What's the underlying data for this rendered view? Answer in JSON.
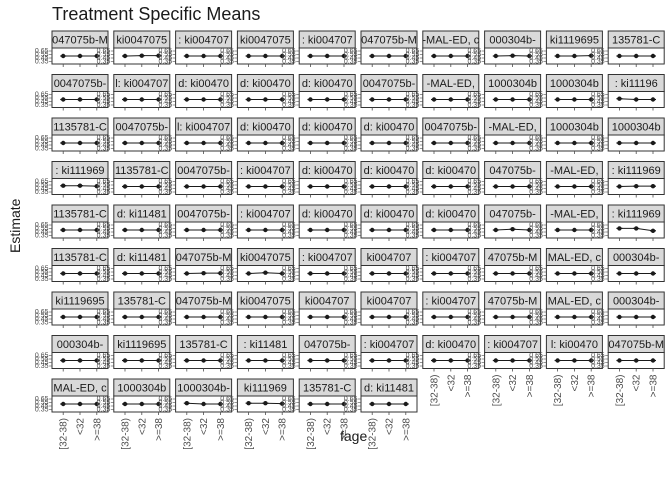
{
  "chart_data": {
    "type": "scatter",
    "title": "Treatment Specific Means",
    "xlabel": "fage",
    "ylabel": "Estimate",
    "x_categories": [
      "[32-38)",
      "<32",
      ">=38"
    ],
    "grid_rows": 9,
    "grid_cols": 10,
    "panel_count": 86,
    "y_range": [
      0,
      1
    ],
    "panels": [
      {
        "strip": "047075b-M",
        "values": [
          0.5,
          0.5,
          0.5
        ]
      },
      {
        "strip": "ki0047075",
        "values": [
          0.5,
          0.52,
          0.52
        ]
      },
      {
        "strip": ": ki004707",
        "values": [
          0.5,
          0.5,
          0.5
        ]
      },
      {
        "strip": "ki0047075",
        "values": [
          0.5,
          0.5,
          0.5
        ]
      },
      {
        "strip": ": ki004707",
        "values": [
          0.5,
          0.5,
          0.5
        ]
      },
      {
        "strip": "047075b-M",
        "values": [
          0.5,
          0.5,
          0.5
        ]
      },
      {
        "strip": "-MAL-ED, c",
        "values": [
          0.5,
          0.5,
          0.5
        ]
      },
      {
        "strip": "000304b-",
        "values": [
          0.5,
          0.52,
          0.5
        ]
      },
      {
        "strip": "ki1119695",
        "values": [
          0.5,
          0.5,
          0.52
        ]
      },
      {
        "strip": "135781-C",
        "values": [
          0.5,
          0.5,
          0.5
        ]
      },
      {
        "strip": "0047075b-",
        "values": [
          0.5,
          0.5,
          0.5
        ]
      },
      {
        "strip": "l: ki004707",
        "values": [
          0.5,
          0.5,
          0.5
        ]
      },
      {
        "strip": "d: ki00470",
        "values": [
          0.5,
          0.5,
          0.5
        ]
      },
      {
        "strip": "d: ki00470",
        "values": [
          0.5,
          0.5,
          0.5
        ]
      },
      {
        "strip": "d: ki00470",
        "values": [
          0.5,
          0.5,
          0.5
        ]
      },
      {
        "strip": "0047075b-",
        "values": [
          0.5,
          0.5,
          0.5
        ]
      },
      {
        "strip": "-MAL-ED,",
        "values": [
          0.5,
          0.5,
          0.5
        ]
      },
      {
        "strip": "1000304b",
        "values": [
          0.5,
          0.5,
          0.5
        ]
      },
      {
        "strip": "1000304b",
        "values": [
          0.5,
          0.5,
          0.5
        ]
      },
      {
        "strip": ": ki11196",
        "values": [
          0.55,
          0.5,
          0.5
        ]
      },
      {
        "strip": "1135781-C",
        "values": [
          0.5,
          0.5,
          0.5
        ]
      },
      {
        "strip": "0047075b-",
        "values": [
          0.5,
          0.5,
          0.5
        ]
      },
      {
        "strip": "l: ki004707",
        "values": [
          0.5,
          0.5,
          0.5
        ]
      },
      {
        "strip": "d: ki00470",
        "values": [
          0.5,
          0.5,
          0.5
        ]
      },
      {
        "strip": "d: ki00470",
        "values": [
          0.5,
          0.5,
          0.5
        ]
      },
      {
        "strip": "d: ki00470",
        "values": [
          0.5,
          0.5,
          0.5
        ]
      },
      {
        "strip": "0047075b-",
        "values": [
          0.5,
          0.5,
          0.5
        ]
      },
      {
        "strip": "-MAL-ED,",
        "values": [
          0.5,
          0.5,
          0.5
        ]
      },
      {
        "strip": "1000304b",
        "values": [
          0.5,
          0.5,
          0.5
        ]
      },
      {
        "strip": "1000304b",
        "values": [
          0.5,
          0.5,
          0.5
        ]
      },
      {
        "strip": ": ki111969",
        "values": [
          0.55,
          0.55,
          0.52
        ]
      },
      {
        "strip": "1135781-C",
        "values": [
          0.5,
          0.5,
          0.5
        ]
      },
      {
        "strip": "0047075b-",
        "values": [
          0.5,
          0.5,
          0.5
        ]
      },
      {
        "strip": ": ki004707",
        "values": [
          0.5,
          0.5,
          0.5
        ]
      },
      {
        "strip": "d: ki00470",
        "values": [
          0.5,
          0.5,
          0.5
        ]
      },
      {
        "strip": "d: ki00470",
        "values": [
          0.5,
          0.5,
          0.5
        ]
      },
      {
        "strip": "d: ki00470",
        "values": [
          0.5,
          0.5,
          0.5
        ]
      },
      {
        "strip": "047075b-",
        "values": [
          0.5,
          0.5,
          0.5
        ]
      },
      {
        "strip": "-MAL-ED,",
        "values": [
          0.5,
          0.5,
          0.5
        ]
      },
      {
        "strip": ": ki111969",
        "values": [
          0.5,
          0.52,
          0.52
        ]
      },
      {
        "strip": "1135781-C",
        "values": [
          0.5,
          0.5,
          0.5
        ]
      },
      {
        "strip": "d: ki11481",
        "values": [
          0.5,
          0.5,
          0.5
        ]
      },
      {
        "strip": "0047075b-",
        "values": [
          0.5,
          0.5,
          0.5
        ]
      },
      {
        "strip": ": ki004707",
        "values": [
          0.5,
          0.5,
          0.5
        ]
      },
      {
        "strip": "d: ki00470",
        "values": [
          0.5,
          0.5,
          0.5
        ]
      },
      {
        "strip": "d: ki00470",
        "values": [
          0.5,
          0.5,
          0.5
        ]
      },
      {
        "strip": "d: ki00470",
        "values": [
          0.5,
          0.5,
          0.5
        ]
      },
      {
        "strip": "047075b-",
        "values": [
          0.5,
          0.55,
          0.5
        ]
      },
      {
        "strip": "-MAL-ED,",
        "values": [
          0.5,
          0.5,
          0.5
        ]
      },
      {
        "strip": ": ki111969",
        "values": [
          0.6,
          0.6,
          0.45
        ]
      },
      {
        "strip": "1135781-C",
        "values": [
          0.5,
          0.5,
          0.5
        ]
      },
      {
        "strip": "d: ki11481",
        "values": [
          0.5,
          0.5,
          0.5
        ]
      },
      {
        "strip": "047075b-M",
        "values": [
          0.5,
          0.52,
          0.52
        ]
      },
      {
        "strip": "ki0047075",
        "values": [
          0.5,
          0.55,
          0.5
        ]
      },
      {
        "strip": ": ki004707",
        "values": [
          0.5,
          0.5,
          0.5
        ]
      },
      {
        "strip": "ki004707",
        "values": [
          0.5,
          0.5,
          0.5
        ]
      },
      {
        "strip": ": ki004707",
        "values": [
          0.5,
          0.5,
          0.5
        ]
      },
      {
        "strip": "47075b-M",
        "values": [
          0.5,
          0.5,
          0.5
        ]
      },
      {
        "strip": "MAL-ED, c",
        "values": [
          0.5,
          0.5,
          0.5
        ]
      },
      {
        "strip": "000304b-",
        "values": [
          0.5,
          0.5,
          0.5
        ]
      },
      {
        "strip": "ki1119695",
        "values": [
          0.5,
          0.5,
          0.5
        ]
      },
      {
        "strip": "135781-C",
        "values": [
          0.5,
          0.5,
          0.5
        ]
      },
      {
        "strip": "047075b-M",
        "values": [
          0.5,
          0.5,
          0.5
        ]
      },
      {
        "strip": "ki0047075",
        "values": [
          0.5,
          0.5,
          0.5
        ]
      },
      {
        "strip": "ki004707",
        "values": [
          0.5,
          0.5,
          0.5
        ]
      },
      {
        "strip": "ki004707",
        "values": [
          0.5,
          0.5,
          0.5
        ]
      },
      {
        "strip": ": ki004707",
        "values": [
          0.5,
          0.5,
          0.5
        ]
      },
      {
        "strip": "47075b-M",
        "values": [
          0.5,
          0.5,
          0.5
        ]
      },
      {
        "strip": "MAL-ED, c",
        "values": [
          0.5,
          0.5,
          0.5
        ]
      },
      {
        "strip": "000304b-",
        "values": [
          0.5,
          0.5,
          0.5
        ]
      },
      {
        "strip": "000304b-",
        "values": [
          0.5,
          0.5,
          0.5
        ]
      },
      {
        "strip": "ki1119695",
        "values": [
          0.5,
          0.5,
          0.5
        ]
      },
      {
        "strip": "135781-C",
        "values": [
          0.5,
          0.5,
          0.5
        ]
      },
      {
        "strip": ": ki11481",
        "values": [
          0.5,
          0.5,
          0.5
        ]
      },
      {
        "strip": "047075b-",
        "values": [
          0.5,
          0.5,
          0.5
        ]
      },
      {
        "strip": ": ki004707",
        "values": [
          0.5,
          0.5,
          0.5
        ]
      },
      {
        "strip": "d: ki00470",
        "values": [
          0.5,
          0.5,
          0.5
        ]
      },
      {
        "strip": ": ki004707",
        "values": [
          0.5,
          0.5,
          0.5
        ]
      },
      {
        "strip": "l: ki00470",
        "values": [
          0.5,
          0.5,
          0.5
        ]
      },
      {
        "strip": "047075b-M",
        "values": [
          0.5,
          0.5,
          0.5
        ]
      },
      {
        "strip": "MAL-ED, c",
        "values": [
          0.5,
          0.5,
          0.5
        ]
      },
      {
        "strip": "1000304b",
        "values": [
          0.5,
          0.5,
          0.5
        ]
      },
      {
        "strip": "1000304b-",
        "values": [
          0.55,
          0.5,
          0.5
        ]
      },
      {
        "strip": "ki111969",
        "values": [
          0.55,
          0.55,
          0.52
        ]
      },
      {
        "strip": "135781-C",
        "values": [
          0.5,
          0.5,
          0.5
        ]
      },
      {
        "strip": "d: ki11481",
        "values": [
          0.5,
          0.5,
          0.5
        ]
      }
    ]
  }
}
